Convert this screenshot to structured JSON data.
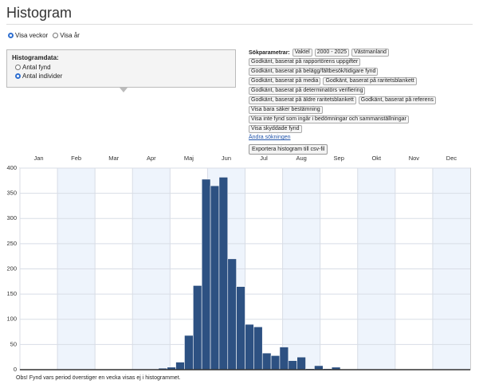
{
  "header": {
    "title": "Histogram"
  },
  "view_options": [
    {
      "label": "Visa veckor",
      "checked": true
    },
    {
      "label": "Visa år",
      "checked": false
    }
  ],
  "histogram_data": {
    "title": "Histogramdata:",
    "options": [
      {
        "label": "Antal fynd",
        "checked": false
      },
      {
        "label": "Antal individer",
        "checked": true
      }
    ]
  },
  "search": {
    "label": "Sökparametrar:",
    "rows": [
      [
        "Vaktel",
        "2000 - 2025",
        "Västmanland"
      ],
      [
        "Godkänt, baserat på rapportörens uppgifter"
      ],
      [
        "Godkänt, baserat på belägg/fältbesök/tidigare fynd"
      ],
      [
        "Godkänt, baserat på media",
        "Godkänt, baserat på raritetsblankett"
      ],
      [
        "Godkänt, baserat på determinatörs verifiering"
      ],
      [
        "Godkänt, baserat på äldre raritetsblankett",
        "Godkänt, baserat på referens"
      ],
      [
        "Visa bara säker bestämning"
      ],
      [
        "Visa inte fynd som ingår i bedömningar och sammanställningar"
      ],
      [
        "Visa skyddade fynd"
      ]
    ],
    "change_link": "Ändra sökningen",
    "export_button": "Exportera histogram till csv-fil"
  },
  "chart_data": {
    "type": "bar",
    "months": [
      "Jan",
      "Feb",
      "Mar",
      "Apr",
      "Maj",
      "Jun",
      "Jul",
      "Aug",
      "Sep",
      "Okt",
      "Nov",
      "Dec"
    ],
    "values": [
      0,
      0,
      0,
      0,
      0,
      0,
      0,
      0,
      0,
      0,
      0,
      0,
      0,
      0,
      0,
      0,
      3,
      5,
      15,
      68,
      167,
      378,
      365,
      382,
      220,
      165,
      90,
      85,
      33,
      28,
      45,
      18,
      25,
      2,
      8,
      2,
      5,
      0,
      0,
      0,
      0,
      0,
      0,
      0,
      0,
      0,
      0,
      0,
      0,
      0,
      0,
      0
    ],
    "color": "#2d5182",
    "ylim": [
      0,
      400
    ],
    "yticks": [
      0,
      50,
      100,
      150,
      200,
      250,
      300,
      350,
      400
    ],
    "grid": true
  },
  "footnote": "Obs! Fynd vars period överstiger en vecka visas ej i histogrammet."
}
